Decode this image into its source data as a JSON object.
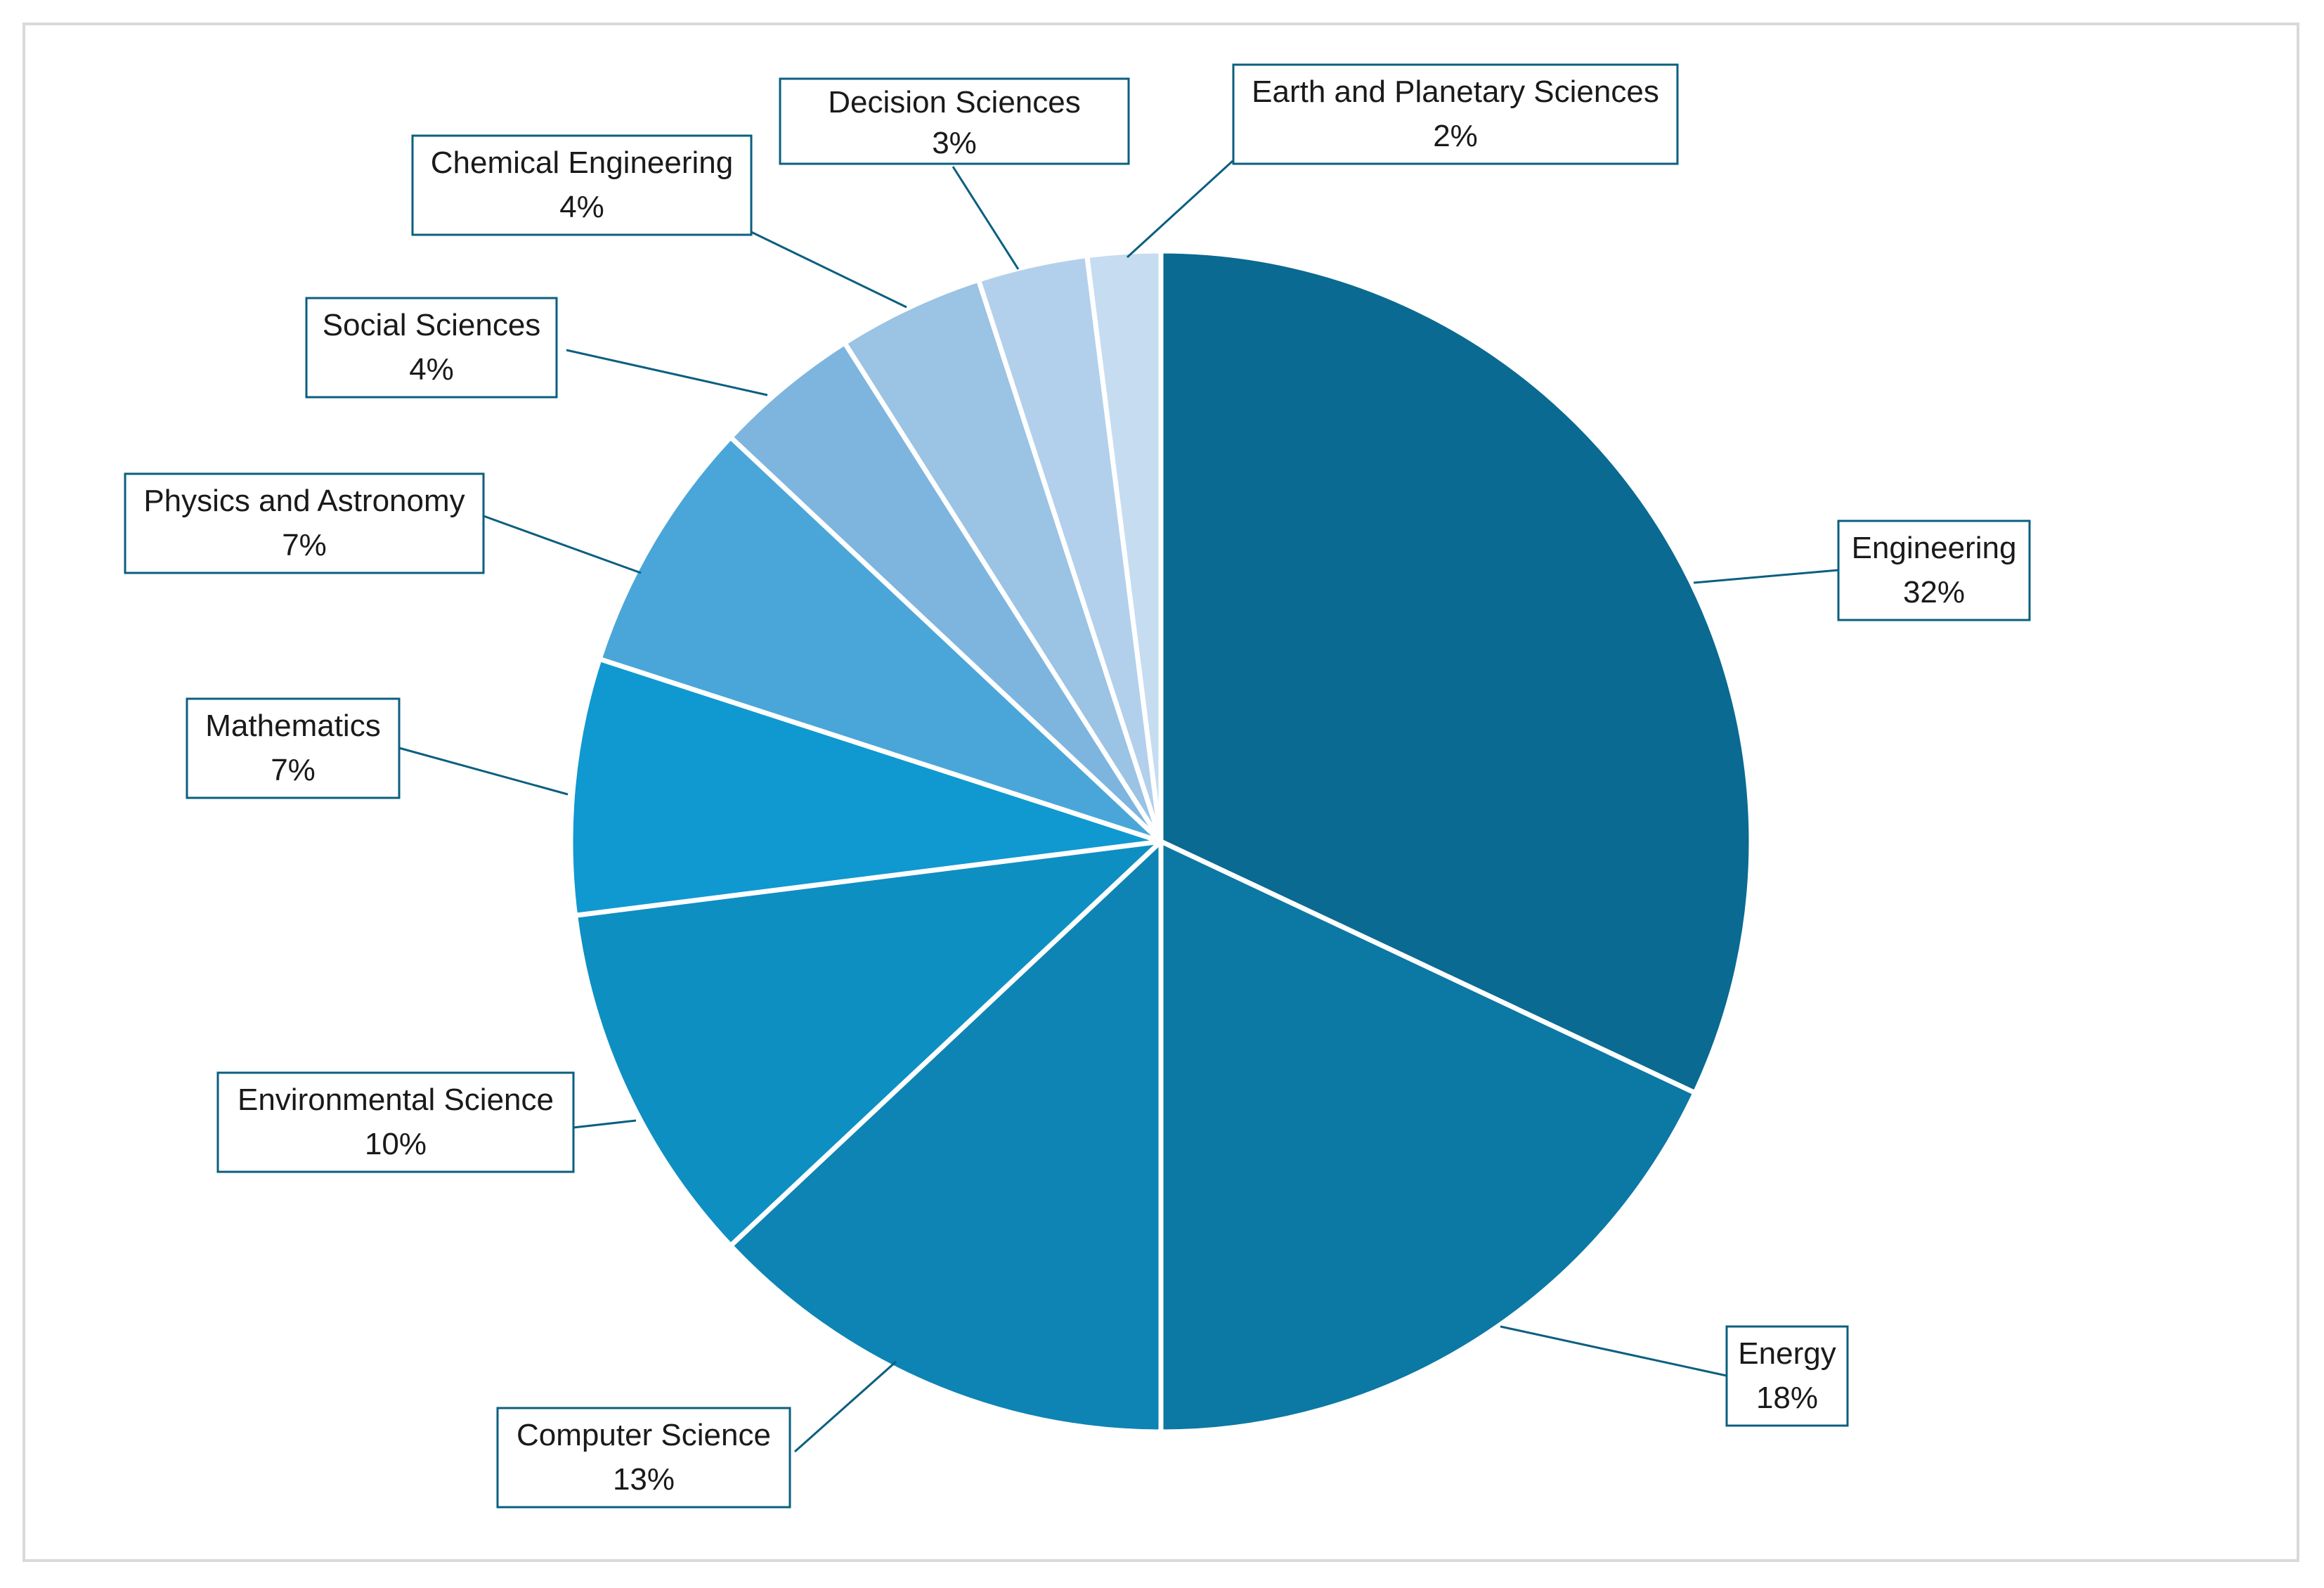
{
  "chart_data": {
    "type": "pie",
    "title": "",
    "legend": "none",
    "slices": [
      {
        "label": "Engineering",
        "value": 32,
        "pct_label": "32%",
        "color": "#0a6a91"
      },
      {
        "label": "Energy",
        "value": 18,
        "pct_label": "18%",
        "color": "#0c78a4"
      },
      {
        "label": "Computer Science",
        "value": 13,
        "pct_label": "13%",
        "color": "#0d84b4"
      },
      {
        "label": "Environmental Science",
        "value": 10,
        "pct_label": "10%",
        "color": "#0e8fc2"
      },
      {
        "label": "Mathematics",
        "value": 7,
        "pct_label": "7%",
        "color": "#0f99d0"
      },
      {
        "label": "Physics and Astronomy",
        "value": 7,
        "pct_label": "7%",
        "color": "#4aa6d8"
      },
      {
        "label": "Social Sciences",
        "value": 4,
        "pct_label": "4%",
        "color": "#7db5df"
      },
      {
        "label": "Chemical Engineering",
        "value": 4,
        "pct_label": "4%",
        "color": "#9ac3e4"
      },
      {
        "label": "Decision Sciences",
        "value": 3,
        "pct_label": "3%",
        "color": "#b2d0eb"
      },
      {
        "label": "Earth and Planetary Sciences",
        "value": 2,
        "pct_label": "2%",
        "color": "#c6dcf0"
      }
    ]
  }
}
